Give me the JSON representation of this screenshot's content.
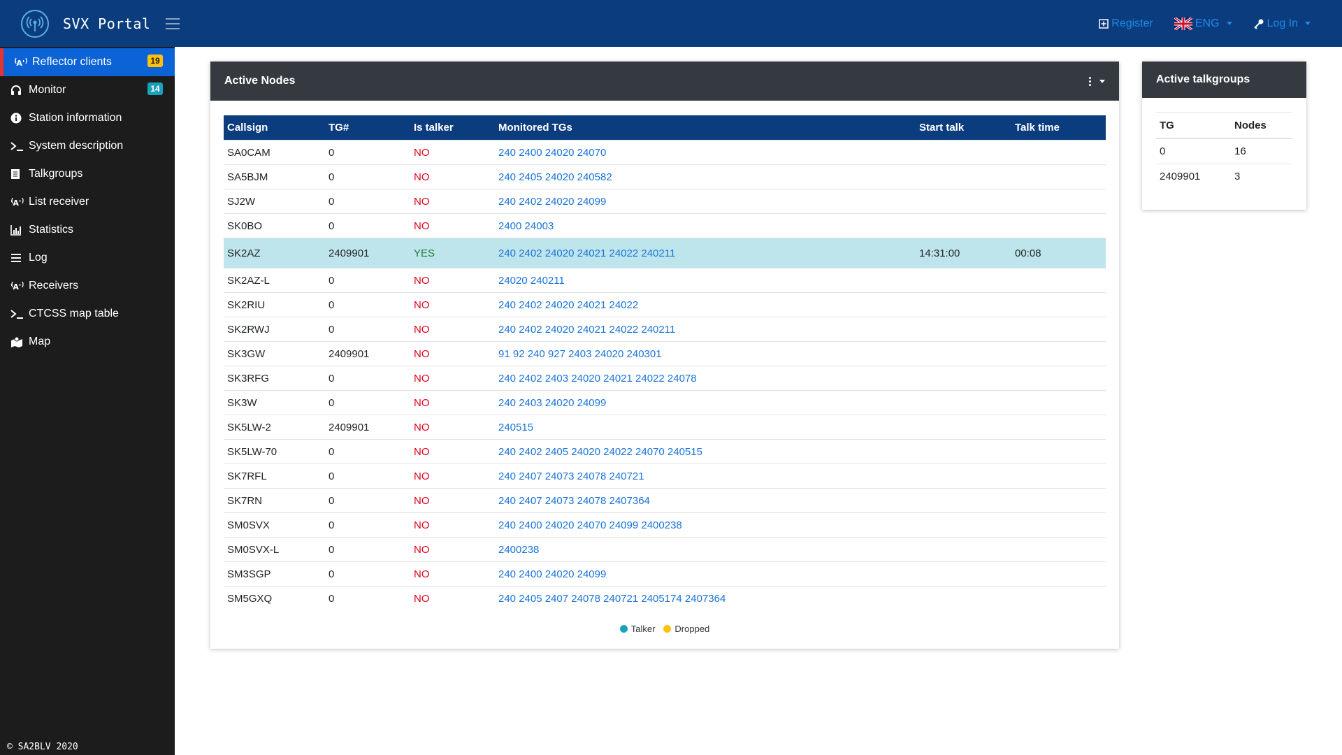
{
  "brand": {
    "title": "SVX Portal"
  },
  "topnav": {
    "register": "Register",
    "language": "ENG",
    "login": "Log In"
  },
  "sidebar": {
    "items": [
      {
        "label": "Reflector clients",
        "icon": "antenna-icon",
        "badge": "19",
        "active": true
      },
      {
        "label": "Monitor",
        "icon": "headphones-icon",
        "badge": "14"
      },
      {
        "label": "Station information",
        "icon": "info-icon"
      },
      {
        "label": "System description",
        "icon": "terminal-icon"
      },
      {
        "label": "Talkgroups",
        "icon": "book-icon"
      },
      {
        "label": "List receiver",
        "icon": "antenna-icon"
      },
      {
        "label": "Statistics",
        "icon": "chart-icon"
      },
      {
        "label": "Log",
        "icon": "list-icon"
      },
      {
        "label": "Receivers",
        "icon": "antenna-icon"
      },
      {
        "label": "CTCSS map table",
        "icon": "terminal-icon"
      },
      {
        "label": "Map",
        "icon": "map-icon"
      }
    ],
    "footer": "© SA2BLV 2020"
  },
  "active_nodes": {
    "title": "Active Nodes",
    "columns": [
      "Callsign",
      "TG#",
      "Is talker",
      "Monitored TGs",
      "Start talk",
      "Talk time"
    ],
    "rows": [
      [
        "SA0CAM",
        "0",
        "NO",
        "240 2400 24020 24070",
        "",
        ""
      ],
      [
        "SA5BJM",
        "0",
        "NO",
        "240 2405 24020 240582",
        "",
        ""
      ],
      [
        "SJ2W",
        "0",
        "NO",
        "240 2402 24020 24099",
        "",
        ""
      ],
      [
        "SK0BO",
        "0",
        "NO",
        "2400 24003",
        "",
        ""
      ],
      [
        "SK2AZ",
        "2409901",
        "YES",
        "240 2402 24020 24021 24022 240211",
        "14:31:00",
        "00:08"
      ],
      [
        "SK2AZ-L",
        "0",
        "NO",
        "24020 240211",
        "",
        ""
      ],
      [
        "SK2RIU",
        "0",
        "NO",
        "240 2402 24020 24021 24022",
        "",
        ""
      ],
      [
        "SK2RWJ",
        "0",
        "NO",
        "240 2402 24020 24021 24022 240211",
        "",
        ""
      ],
      [
        "SK3GW",
        "2409901",
        "NO",
        "91 92 240 927 2403 24020 240301",
        "",
        ""
      ],
      [
        "SK3RFG",
        "0",
        "NO",
        "240 2402 2403 24020 24021 24022 24078",
        "",
        ""
      ],
      [
        "SK3W",
        "0",
        "NO",
        "240 2403 24020 24099",
        "",
        ""
      ],
      [
        "SK5LW-2",
        "2409901",
        "NO",
        "240515",
        "",
        ""
      ],
      [
        "SK5LW-70",
        "0",
        "NO",
        "240 2402 2405 24020 24022 24070 240515",
        "",
        ""
      ],
      [
        "SK7RFL",
        "0",
        "NO",
        "240 2407 24073 24078 240721",
        "",
        ""
      ],
      [
        "SK7RN",
        "0",
        "NO",
        "240 2407 24073 24078 2407364",
        "",
        ""
      ],
      [
        "SM0SVX",
        "0",
        "NO",
        "240 2400 24020 24070 24099 2400238",
        "",
        ""
      ],
      [
        "SM0SVX-L",
        "0",
        "NO",
        "2400238",
        "",
        ""
      ],
      [
        "SM3SGP",
        "0",
        "NO",
        "240 2400 24020 24099",
        "",
        ""
      ],
      [
        "SM5GXQ",
        "0",
        "NO",
        "240 2405 2407 24078 240721 2405174 2407364",
        "",
        ""
      ]
    ],
    "legend": [
      {
        "label": "Talker",
        "color": "#17a2b8"
      },
      {
        "label": "Dropped",
        "color": "#ffc107"
      }
    ]
  },
  "active_talkgroups": {
    "title": "Active talkgroups",
    "columns": [
      "TG",
      "Nodes"
    ],
    "rows": [
      [
        "0",
        "16"
      ],
      [
        "2409901",
        "3"
      ]
    ]
  },
  "colors": {
    "topbar": "#0b3d7e",
    "sidebar": "#1c1c1c",
    "active_nav": "#0b63d6",
    "talker_row": "#bee5eb",
    "no": "#e3001b",
    "yes": "#1e7e34",
    "link": "#1a73d9"
  }
}
